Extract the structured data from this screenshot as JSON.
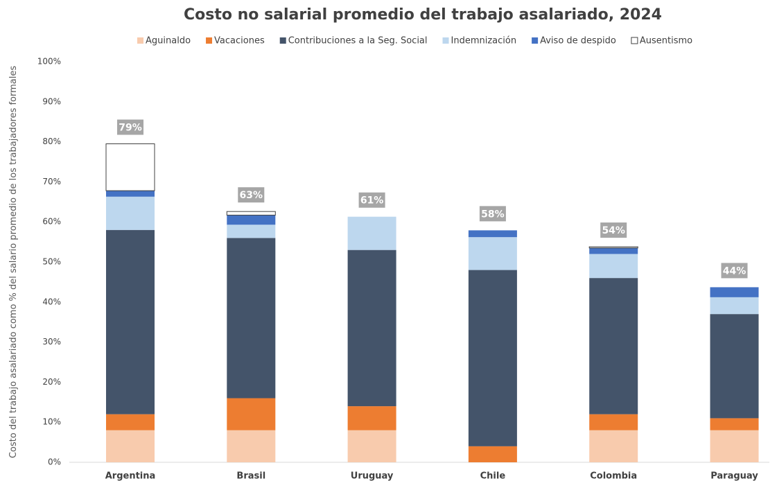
{
  "chart_data": {
    "type": "stacked_bar",
    "title": "Costo no salarial promedio del trabajo asalariado, 2024",
    "y_label": "Costo del trabajo asalariado como % del salario promedio de los trabajadores formales",
    "categories": [
      "Argentina",
      "Brasil",
      "Uruguay",
      "Chile",
      "Colombia",
      "Paraguay"
    ],
    "series": [
      {
        "name": "Aguinaldo",
        "color": "#f8cbad",
        "values": [
          8,
          8,
          8,
          0,
          8,
          8
        ]
      },
      {
        "name": "Vacaciones",
        "color": "#ed7d31",
        "values": [
          4,
          8,
          6,
          4,
          4,
          3
        ]
      },
      {
        "name": "Contribuciones a la Seg. Social",
        "color": "#44546a",
        "values": [
          46,
          40,
          39,
          44,
          34,
          26
        ]
      },
      {
        "name": "Indemnización",
        "color": "#bdd7ee",
        "values": [
          8.3,
          3.3,
          8.3,
          8.2,
          6,
          4.2
        ]
      },
      {
        "name": "Aviso de despido",
        "color": "#4472c4",
        "values": [
          1.5,
          2.4,
          0,
          1.7,
          1.5,
          2.5
        ]
      },
      {
        "name": "Ausentismo",
        "color": "#ffffff",
        "values": [
          11.7,
          0.9,
          0,
          0,
          0.3,
          0
        ]
      }
    ],
    "totals": {
      "values": [
        79,
        63,
        61,
        58,
        54,
        44
      ],
      "value_labels": [
        "79%",
        "63%",
        "61%",
        "58%",
        "54%",
        "44%"
      ]
    },
    "ylim": [
      0,
      100
    ],
    "yticks": [
      {
        "value": 0,
        "label": "0%"
      },
      {
        "value": 10,
        "label": "10%"
      },
      {
        "value": 20,
        "label": "20%"
      },
      {
        "value": 30,
        "label": "30%"
      },
      {
        "value": 40,
        "label": "40%"
      },
      {
        "value": 50,
        "label": "50%"
      },
      {
        "value": 60,
        "label": "60%"
      },
      {
        "value": 70,
        "label": "70%"
      },
      {
        "value": 80,
        "label": "80%"
      },
      {
        "value": 90,
        "label": "90%"
      },
      {
        "value": 100,
        "label": "100%"
      }
    ],
    "grid": false
  }
}
